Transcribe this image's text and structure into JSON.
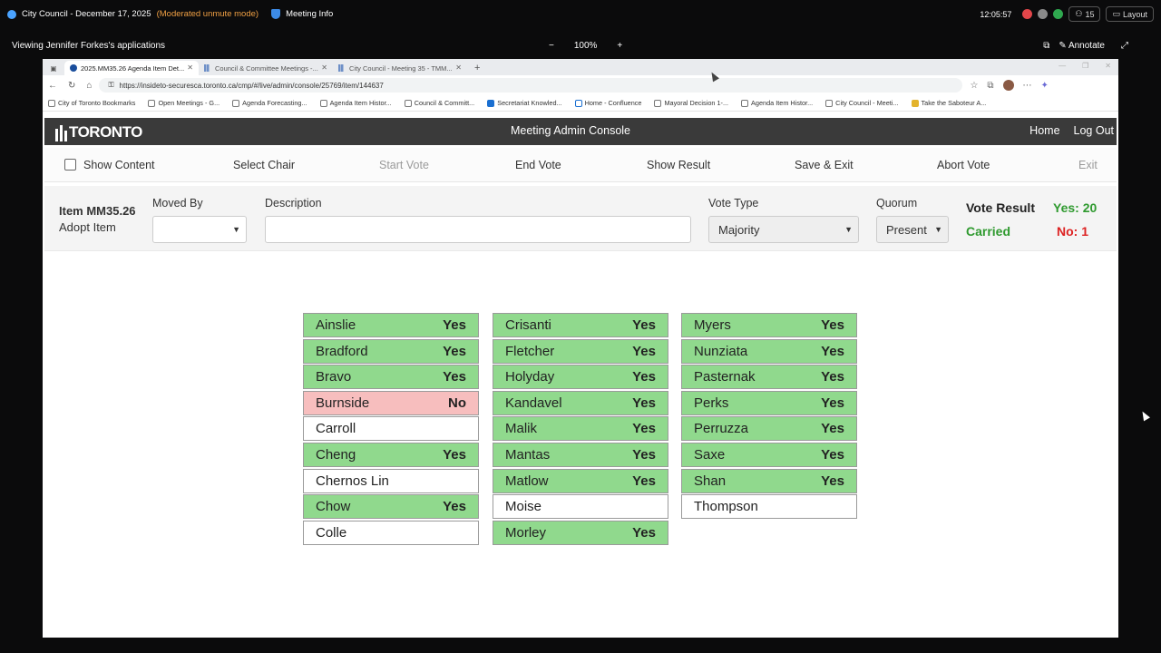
{
  "meeting": {
    "title": "City Council - December 17, 2025",
    "mode": "(Moderated unmute mode)",
    "info": "Meeting Info",
    "clock": "12:05:57",
    "participants": "15",
    "layout": "Layout"
  },
  "viewing": {
    "title": "Viewing Jennifer Forkes's applications",
    "zoom": "100%",
    "zoom_minus": "−",
    "zoom_plus": "+",
    "annotate": "Annotate"
  },
  "browser": {
    "tabs": [
      {
        "label": "2025.MM35.26 Agenda Item Det..."
      },
      {
        "label": "Council & Committee Meetings -..."
      },
      {
        "label": "City Council - Meeting 35 - TMM..."
      }
    ],
    "url": "https://insideto-securesca.toronto.ca/cmp/#/live/admin/console/25769/item/144637",
    "bookmarks": [
      "City of Toronto Bookmarks",
      "Open Meetings - G...",
      "Agenda Forecasting...",
      "Agenda Item Histor...",
      "Council & Committ...",
      "Secretariat Knowled...",
      "Home - Confluence",
      "Mayoral Decision 1-...",
      "Agenda Item Histor...",
      "City Council - Meeti...",
      "Take the Saboteur A..."
    ]
  },
  "app": {
    "logo": "TORONTO",
    "title": "Meeting Admin Console",
    "home": "Home",
    "logout": "Log Out"
  },
  "toolbar": {
    "show_content": "Show Content",
    "select_chair": "Select Chair",
    "start_vote": "Start Vote",
    "end_vote": "End Vote",
    "show_result": "Show Result",
    "save_exit": "Save & Exit",
    "abort_vote": "Abort Vote",
    "exit": "Exit"
  },
  "item": {
    "id": "Item MM35.26",
    "action": "Adopt Item",
    "moved_by_label": "Moved By",
    "moved_by_value": "",
    "description_label": "Description",
    "description_value": "",
    "vote_type_label": "Vote Type",
    "vote_type_value": "Majority",
    "quorum_label": "Quorum",
    "quorum_value": "Present",
    "vote_result_label": "Vote Result",
    "result": "Carried",
    "yes": "Yes: 20",
    "no": "No: 1"
  },
  "votes": [
    {
      "name": "Ainslie",
      "vote": "Yes",
      "status": "yes"
    },
    {
      "name": "Bradford",
      "vote": "Yes",
      "status": "yes"
    },
    {
      "name": "Bravo",
      "vote": "Yes",
      "status": "yes"
    },
    {
      "name": "Burnside",
      "vote": "No",
      "status": "no"
    },
    {
      "name": "Carroll",
      "vote": "",
      "status": "blank"
    },
    {
      "name": "Cheng",
      "vote": "Yes",
      "status": "yes"
    },
    {
      "name": "Chernos Lin",
      "vote": "",
      "status": "blank"
    },
    {
      "name": "Chow",
      "vote": "Yes",
      "status": "yes"
    },
    {
      "name": "Colle",
      "vote": "",
      "status": "blank"
    },
    {
      "name": "Crisanti",
      "vote": "Yes",
      "status": "yes"
    },
    {
      "name": "Fletcher",
      "vote": "Yes",
      "status": "yes"
    },
    {
      "name": "Holyday",
      "vote": "Yes",
      "status": "yes"
    },
    {
      "name": "Kandavel",
      "vote": "Yes",
      "status": "yes"
    },
    {
      "name": "Malik",
      "vote": "Yes",
      "status": "yes"
    },
    {
      "name": "Mantas",
      "vote": "Yes",
      "status": "yes"
    },
    {
      "name": "Matlow",
      "vote": "Yes",
      "status": "yes"
    },
    {
      "name": "Moise",
      "vote": "",
      "status": "blank"
    },
    {
      "name": "Morley",
      "vote": "Yes",
      "status": "yes"
    },
    {
      "name": "Myers",
      "vote": "Yes",
      "status": "yes"
    },
    {
      "name": "Nunziata",
      "vote": "Yes",
      "status": "yes"
    },
    {
      "name": "Pasternak",
      "vote": "Yes",
      "status": "yes"
    },
    {
      "name": "Perks",
      "vote": "Yes",
      "status": "yes"
    },
    {
      "name": "Perruzza",
      "vote": "Yes",
      "status": "yes"
    },
    {
      "name": "Saxe",
      "vote": "Yes",
      "status": "yes"
    },
    {
      "name": "Shan",
      "vote": "Yes",
      "status": "yes"
    },
    {
      "name": "Thompson",
      "vote": "",
      "status": "blank"
    }
  ],
  "colors": {
    "yes_fill": "#90d98d",
    "no_fill": "#f7bebe",
    "yes_text": "#2f9a2f",
    "no_text": "#dd2222",
    "header_bg": "#3a3a3a",
    "mode_orange": "#f0a044"
  }
}
